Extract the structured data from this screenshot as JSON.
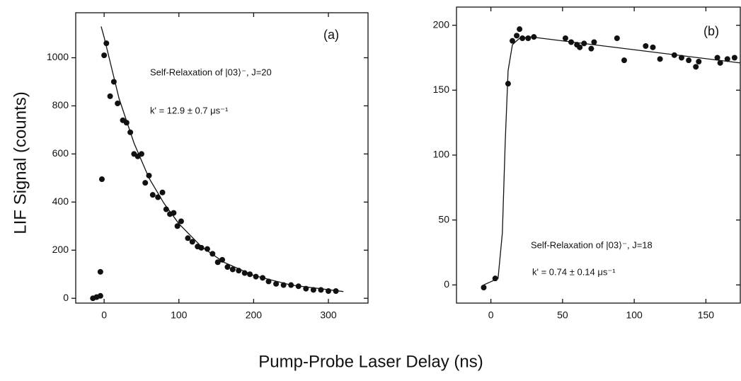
{
  "figure": {
    "ylabel": "LIF Signal (counts)",
    "xlabel": "Pump-Probe Laser Delay (ns)"
  },
  "chart_data": [
    {
      "type": "scatter",
      "panel_label": "(a)",
      "annotations": [
        "Self-Relaxation of |03⟩⁻, J=20",
        "k' = 12.9 ± 0.7 μs⁻¹"
      ],
      "color": "#111111",
      "xlim": [
        -38,
        353
      ],
      "ylim": [
        -20,
        1187
      ],
      "xticks": [
        0,
        100,
        200,
        300
      ],
      "yticks": [
        0,
        200,
        400,
        600,
        800,
        1000
      ],
      "x": [
        -15,
        -10,
        -5,
        -5,
        -3,
        0,
        3,
        8,
        13,
        18,
        25,
        30,
        35,
        40,
        45,
        50,
        55,
        60,
        65,
        72,
        78,
        83,
        88,
        93,
        98,
        103,
        112,
        118,
        125,
        130,
        138,
        145,
        152,
        158,
        165,
        172,
        180,
        188,
        195,
        203,
        212,
        220,
        230,
        240,
        250,
        260,
        270,
        280,
        290,
        300,
        310
      ],
      "values": [
        0,
        5,
        10,
        110,
        495,
        1010,
        1060,
        840,
        900,
        810,
        740,
        730,
        690,
        600,
        590,
        600,
        480,
        510,
        430,
        420,
        440,
        370,
        350,
        355,
        300,
        320,
        250,
        235,
        215,
        210,
        205,
        185,
        150,
        160,
        130,
        120,
        115,
        105,
        100,
        90,
        85,
        70,
        60,
        55,
        55,
        50,
        40,
        35,
        35,
        30,
        30
      ],
      "fit": {
        "x": [
          -4,
          0,
          20,
          40,
          60,
          80,
          100,
          130,
          160,
          200,
          250,
          320
        ],
        "values": [
          1130,
          1085,
          830,
          645,
          500,
          395,
          310,
          215,
          150,
          95,
          55,
          28
        ]
      }
    },
    {
      "type": "scatter",
      "panel_label": "(b)",
      "annotations": [
        "Self-Relaxation of |03⟩⁻, J=18",
        "k' = 0.74 ± 0.14 μs⁻¹"
      ],
      "color": "#111111",
      "xlim": [
        -24,
        174
      ],
      "ylim": [
        -14,
        214
      ],
      "xticks": [
        0,
        50,
        100,
        150
      ],
      "yticks": [
        0,
        50,
        100,
        150,
        200
      ],
      "x": [
        -5,
        3,
        12,
        15,
        18,
        20,
        22,
        26,
        30,
        52,
        56,
        60,
        62,
        65,
        70,
        72,
        88,
        93,
        108,
        113,
        118,
        128,
        133,
        138,
        143,
        145,
        158,
        160,
        165,
        170
      ],
      "values": [
        -2,
        5,
        155,
        188,
        192,
        197,
        190,
        190,
        191,
        190,
        187,
        185,
        183,
        186,
        182,
        187,
        190,
        173,
        184,
        183,
        174,
        177,
        175,
        173,
        168,
        172,
        175,
        171,
        174,
        175
      ],
      "fit": {
        "x": [
          -5,
          5,
          8,
          10,
          12,
          15,
          20,
          28,
          174
        ],
        "values": [
          0,
          5,
          40,
          110,
          165,
          185,
          190,
          191,
          171
        ]
      }
    }
  ]
}
